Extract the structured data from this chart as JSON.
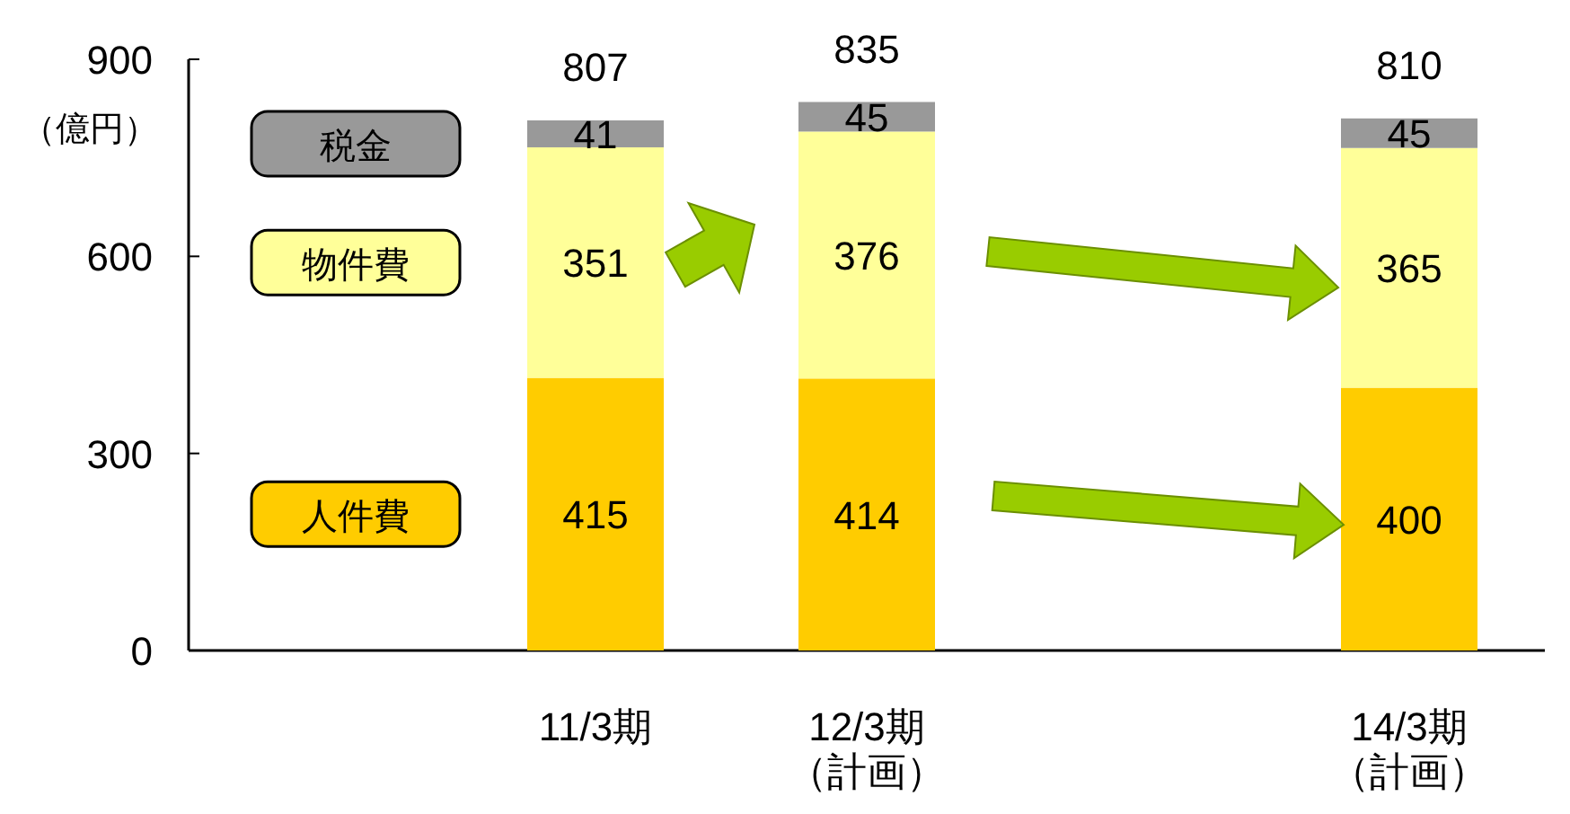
{
  "chart_data": {
    "type": "bar",
    "stacked": true,
    "ylabel": "（億円）",
    "categories": [
      null,
      "11/3期",
      "12/3期（計画）",
      null,
      "14/3期（計画）"
    ],
    "series": [
      {
        "name": "人件費",
        "color": "#ffcc00",
        "values": [
          null,
          415,
          414,
          null,
          400
        ]
      },
      {
        "name": "物件費",
        "color": "#ffff99",
        "values": [
          null,
          351,
          376,
          null,
          365
        ]
      },
      {
        "name": "税金",
        "color": "#999999",
        "values": [
          null,
          41,
          45,
          null,
          45
        ]
      }
    ],
    "totals": [
      null,
      "807",
      "835",
      null,
      "810"
    ],
    "data_labels": true,
    "ylim": [
      0,
      900
    ],
    "yticks": [
      0,
      300,
      600,
      900
    ],
    "legend": "left",
    "grid": false
  }
}
